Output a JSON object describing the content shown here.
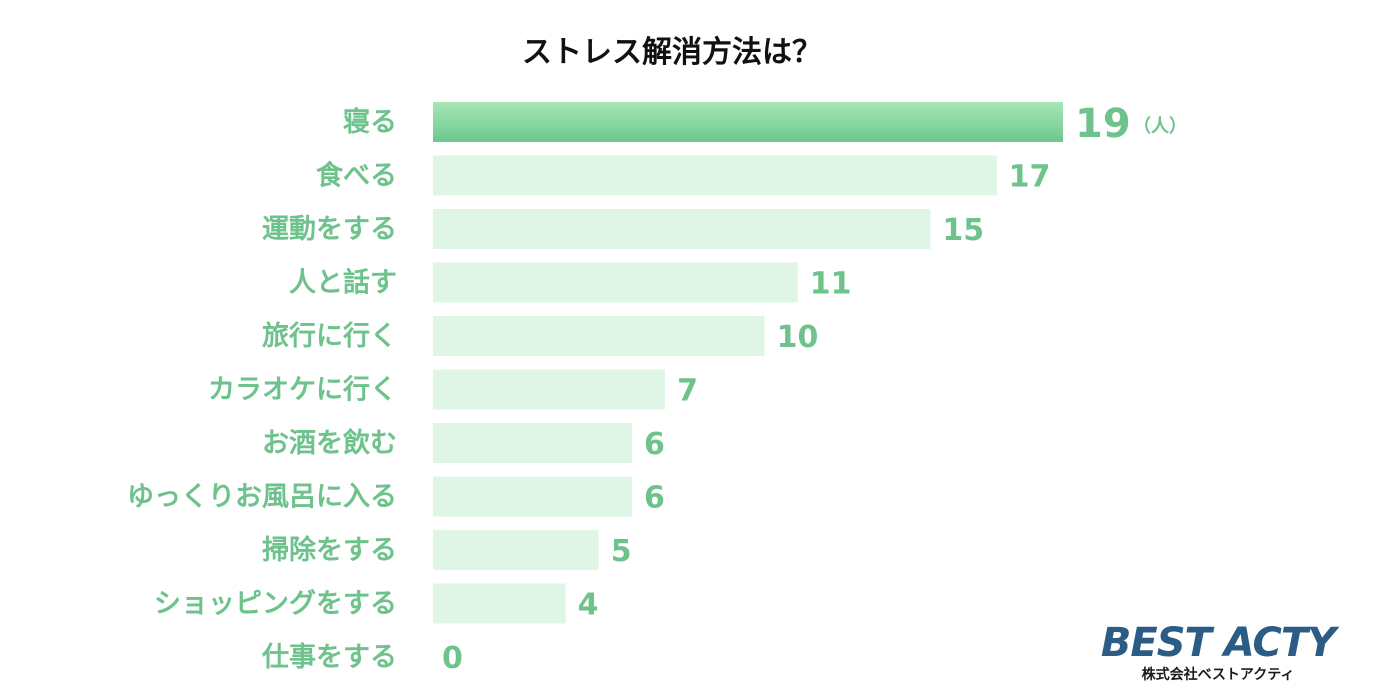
{
  "chart_data": {
    "type": "bar",
    "orientation": "horizontal",
    "title": "ストレス解消方法は？",
    "unit": "（人）",
    "categories": [
      "寝る",
      "食べる",
      "運動をする",
      "人と話す",
      "旅行に行く",
      "カラオケに行く",
      "お酒を飲む",
      "ゆっくりお風呂に入る",
      "掃除をする",
      "ショッピングをする",
      "仕事をする"
    ],
    "values": [
      19,
      17,
      15,
      11,
      10,
      7,
      6,
      6,
      5,
      4,
      0
    ],
    "xlim": [
      0,
      19
    ],
    "grid": false,
    "legend": "none",
    "colors": {
      "highlight_bar_top": "#a8e6b8",
      "highlight_bar_bottom": "#6cc88c",
      "bar": "#dff5e6",
      "label": "#6ec28c",
      "title": "#111111"
    }
  },
  "logo": {
    "main": "BEST ACTY",
    "sub": "株式会社ベストアクティ",
    "color": "#2b5c86"
  }
}
